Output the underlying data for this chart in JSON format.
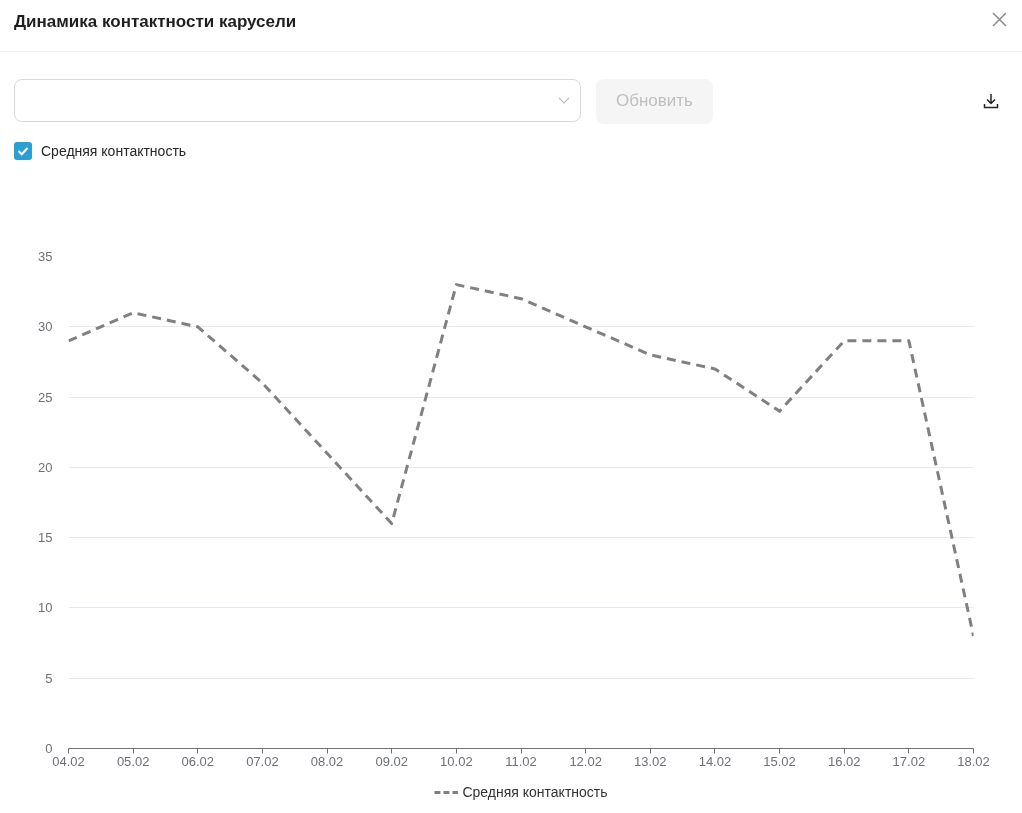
{
  "chart_data": {
    "type": "line",
    "title": "Динамика контактности карусели",
    "annotations": [
      "Обновить"
    ],
    "categories": [
      "04.02",
      "05.02",
      "06.02",
      "07.02",
      "08.02",
      "09.02",
      "10.02",
      "11.02",
      "12.02",
      "13.02",
      "14.02",
      "15.02",
      "16.02",
      "17.02",
      "18.02"
    ],
    "series": [
      {
        "name": "Средняя контактность",
        "color": "#808080",
        "values": [
          29,
          31,
          30,
          26,
          21,
          16,
          33,
          32,
          30,
          28,
          27,
          24,
          29,
          29,
          8
        ]
      }
    ],
    "ylim": [
      0,
      35
    ],
    "yticks": [
      0,
      5,
      10,
      15,
      20,
      25,
      30,
      35
    ],
    "grid": "y",
    "legend": "bottom",
    "line_style": "dashed"
  }
}
